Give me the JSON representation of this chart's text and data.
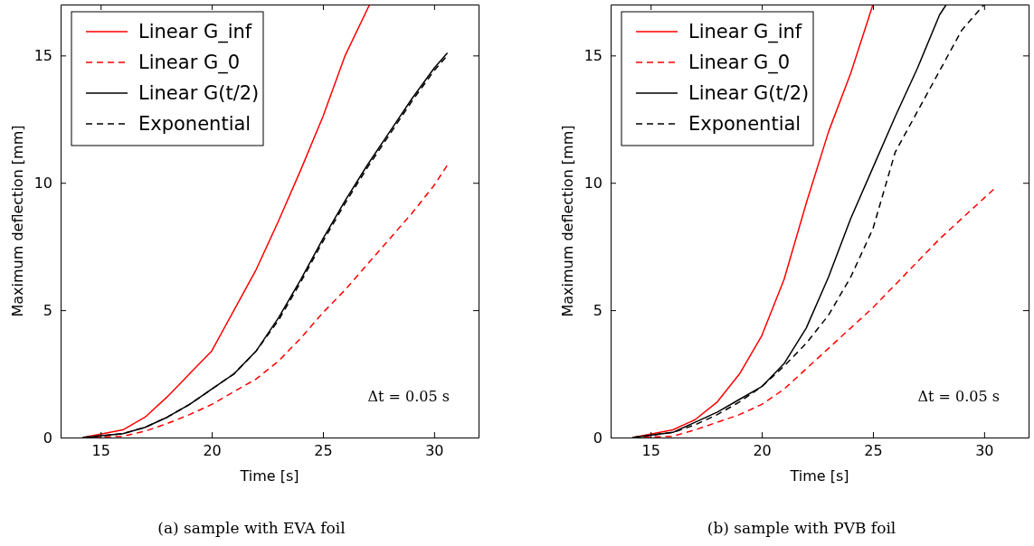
{
  "chart_data": [
    {
      "type": "line",
      "title": "(a) sample with EVA foil",
      "xlabel": "Time [s]",
      "ylabel": "Maximum deflection [mm]",
      "xlim": [
        13.2,
        32
      ],
      "ylim": [
        0,
        17
      ],
      "xticks": [
        15,
        20,
        25,
        30
      ],
      "yticks": [
        0,
        5,
        10,
        15
      ],
      "grid": false,
      "legend": "top left",
      "annotations": [
        "Δt = 0.05 s"
      ],
      "series": [
        {
          "name": "Linear G_inf",
          "color": "#ff0000",
          "line_style": "solid",
          "x": [
            14.2,
            16,
            17,
            18,
            19,
            20,
            21,
            22,
            23,
            24,
            25,
            26,
            27.1
          ],
          "values": [
            0,
            0.3,
            0.8,
            1.6,
            2.5,
            3.4,
            5.0,
            6.6,
            8.5,
            10.5,
            12.6,
            15.0,
            17
          ]
        },
        {
          "name": "Linear G_0",
          "color": "#ff0000",
          "line_style": "dashed",
          "x": [
            14.2,
            16,
            17,
            18,
            19,
            20,
            21,
            22,
            23,
            24,
            25,
            26,
            27,
            28,
            29,
            30,
            30.6
          ],
          "values": [
            0,
            0.05,
            0.25,
            0.55,
            0.9,
            1.3,
            1.8,
            2.3,
            3.0,
            3.9,
            4.9,
            5.8,
            6.8,
            7.8,
            8.8,
            9.9,
            10.7
          ]
        },
        {
          "name": "Linear G(t/2)",
          "color": "#000000",
          "line_style": "solid",
          "x": [
            14.2,
            16,
            17,
            18,
            19,
            20,
            21,
            22,
            23,
            24,
            25,
            26,
            27,
            28,
            29,
            30,
            30.6
          ],
          "values": [
            0,
            0.15,
            0.4,
            0.8,
            1.3,
            1.9,
            2.5,
            3.4,
            4.7,
            6.2,
            7.8,
            9.3,
            10.7,
            12.0,
            13.3,
            14.5,
            15.1
          ]
        },
        {
          "name": "Exponential",
          "color": "#000000",
          "line_style": "dashed",
          "x": [
            14.2,
            16,
            17,
            18,
            19,
            20,
            21,
            22,
            23,
            24,
            25,
            26,
            27,
            28,
            29,
            30,
            30.6
          ],
          "values": [
            0,
            0.15,
            0.4,
            0.8,
            1.3,
            1.9,
            2.5,
            3.4,
            4.6,
            6.1,
            7.7,
            9.2,
            10.6,
            11.9,
            13.2,
            14.4,
            15.0
          ]
        }
      ]
    },
    {
      "type": "line",
      "title": "(b) sample with PVB foil",
      "xlabel": "Time [s]",
      "ylabel": "Maximum deflection [mm]",
      "xlim": [
        13.2,
        32
      ],
      "ylim": [
        0,
        17
      ],
      "xticks": [
        15,
        20,
        25,
        30
      ],
      "yticks": [
        0,
        5,
        10,
        15
      ],
      "grid": false,
      "legend": "top left",
      "annotations": [
        "Δt = 0.05 s"
      ],
      "series": [
        {
          "name": "Linear G_inf",
          "color": "#ff0000",
          "line_style": "solid",
          "x": [
            14.2,
            16,
            17,
            18,
            19,
            20,
            21,
            22,
            23,
            24,
            25
          ],
          "values": [
            0,
            0.3,
            0.7,
            1.4,
            2.5,
            4.0,
            6.2,
            9.2,
            12.0,
            14.3,
            17
          ]
        },
        {
          "name": "Linear G_0",
          "color": "#ff0000",
          "line_style": "dashed",
          "x": [
            14.2,
            16,
            17,
            18,
            19,
            20,
            21,
            22,
            23,
            24,
            25,
            26,
            27,
            28,
            29,
            30,
            30.5
          ],
          "values": [
            0,
            0.05,
            0.3,
            0.6,
            0.9,
            1.3,
            1.9,
            2.7,
            3.5,
            4.3,
            5.1,
            6.0,
            6.9,
            7.8,
            8.6,
            9.4,
            9.8
          ]
        },
        {
          "name": "Linear G(t/2)",
          "color": "#000000",
          "line_style": "solid",
          "x": [
            14.2,
            16,
            17,
            18,
            19,
            20,
            21,
            22,
            23,
            24,
            25,
            26,
            27,
            28,
            28.3
          ],
          "values": [
            0,
            0.2,
            0.6,
            1.0,
            1.5,
            2.0,
            2.9,
            4.3,
            6.3,
            8.6,
            10.6,
            12.6,
            14.5,
            16.6,
            17
          ]
        },
        {
          "name": "Exponential",
          "color": "#000000",
          "line_style": "dashed",
          "x": [
            14.2,
            16,
            17,
            18,
            19,
            20,
            21,
            22,
            23,
            24,
            25,
            26,
            27,
            28,
            29,
            30
          ],
          "values": [
            0,
            0.2,
            0.5,
            0.9,
            1.4,
            2.0,
            2.8,
            3.7,
            4.8,
            6.3,
            8.2,
            11.2,
            12.8,
            14.4,
            16.0,
            17
          ]
        }
      ]
    }
  ]
}
